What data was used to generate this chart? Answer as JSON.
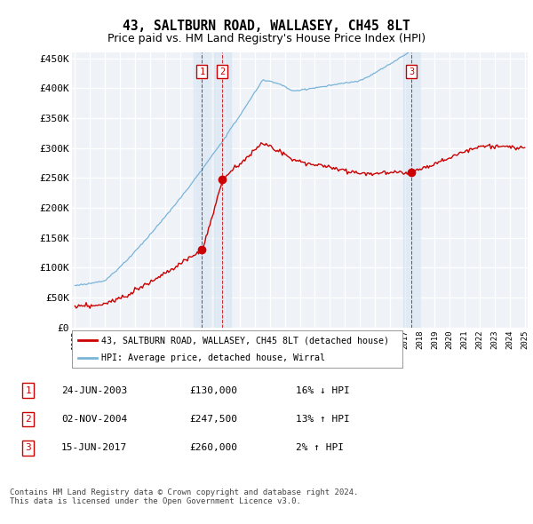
{
  "title": "43, SALTBURN ROAD, WALLASEY, CH45 8LT",
  "subtitle": "Price paid vs. HM Land Registry's House Price Index (HPI)",
  "ylim": [
    0,
    460000
  ],
  "yticks": [
    0,
    50000,
    100000,
    150000,
    200000,
    250000,
    300000,
    350000,
    400000,
    450000
  ],
  "ytick_labels": [
    "£0",
    "£50K",
    "£100K",
    "£150K",
    "£200K",
    "£250K",
    "£300K",
    "£350K",
    "£400K",
    "£450K"
  ],
  "background_color": "#ffffff",
  "plot_bg_color": "#eff3f8",
  "grid_color": "#ffffff",
  "hpi_color": "#7ab4d8",
  "price_color": "#cc0000",
  "sale_marker_color": "#cc0000",
  "sale_bg_color": "#cfe0f0",
  "title_fontsize": 10.5,
  "subtitle_fontsize": 9,
  "sales": [
    {
      "t": 2003.478,
      "price": 130000,
      "label": "1"
    },
    {
      "t": 2004.838,
      "price": 247500,
      "label": "2"
    },
    {
      "t": 2017.452,
      "price": 260000,
      "label": "3"
    }
  ],
  "sale_annotations": [
    {
      "label": "1",
      "date": "24-JUN-2003",
      "price": "£130,000",
      "pct": "16%",
      "dir": "↓",
      "text": "HPI"
    },
    {
      "label": "2",
      "date": "02-NOV-2004",
      "price": "£247,500",
      "pct": "13%",
      "dir": "↑",
      "text": "HPI"
    },
    {
      "label": "3",
      "date": "15-JUN-2017",
      "price": "£260,000",
      "pct": "2%",
      "dir": "↑",
      "text": "HPI"
    }
  ],
  "legend_entries": [
    "43, SALTBURN ROAD, WALLASEY, CH45 8LT (detached house)",
    "HPI: Average price, detached house, Wirral"
  ],
  "footer": "Contains HM Land Registry data © Crown copyright and database right 2024.\nThis data is licensed under the Open Government Licence v3.0.",
  "x_start_year": 1995,
  "x_end_year": 2025
}
